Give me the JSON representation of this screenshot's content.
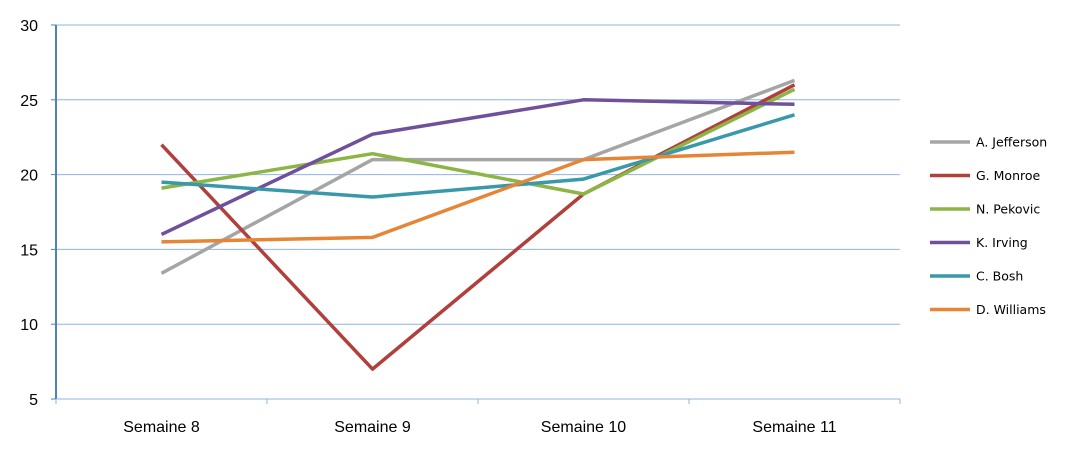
{
  "chart_data": {
    "type": "line",
    "title": "",
    "xlabel": "",
    "ylabel": "",
    "categories": [
      "Semaine 8",
      "Semaine 9",
      "Semaine 10",
      "Semaine 11"
    ],
    "ylim": [
      5,
      30
    ],
    "yticks": [
      5,
      10,
      15,
      20,
      25,
      30
    ],
    "grid": true,
    "legend_position": "right",
    "series": [
      {
        "name": "A. Jefferson",
        "color": "#a5a5a5",
        "values": [
          13.4,
          21.0,
          21.0,
          26.3
        ]
      },
      {
        "name": "G. Monroe",
        "color": "#b13f3c",
        "values": [
          22.0,
          7.0,
          18.7,
          26.0
        ]
      },
      {
        "name": "N. Pekovic",
        "color": "#8cb545",
        "values": [
          19.1,
          21.4,
          18.7,
          25.7
        ]
      },
      {
        "name": "K. Irving",
        "color": "#70509a",
        "values": [
          16.0,
          22.7,
          25.0,
          24.7
        ]
      },
      {
        "name": "C. Bosh",
        "color": "#3a98ab",
        "values": [
          19.5,
          18.5,
          19.7,
          24.0
        ]
      },
      {
        "name": "D. Williams",
        "color": "#e58535",
        "values": [
          15.5,
          15.8,
          21.0,
          21.5
        ]
      }
    ]
  }
}
